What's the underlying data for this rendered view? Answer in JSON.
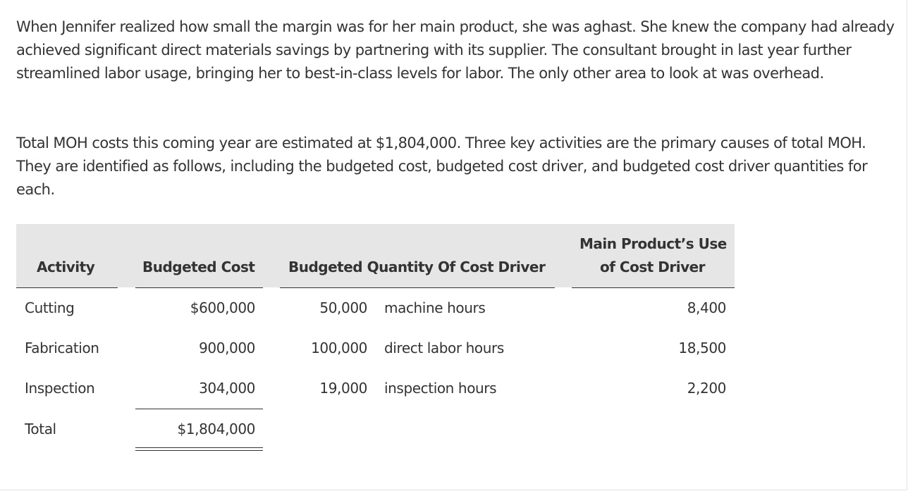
{
  "paragraphs": [
    "When Jennifer realized how small the margin was for her main product, she was aghast. She knew the company had already achieved significant direct materials savings by partnering with its supplier. The consultant brought in last year further streamlined labor usage, bringing her to best-in-class levels for labor. The only other area to look at was overhead.",
    "Total MOH costs this coming year are estimated at $1,804,000. Three key activities are the primary causes of total MOH. They are identified as follows, including the budgeted cost, budgeted cost driver, and budgeted cost driver quantities for each."
  ],
  "table": {
    "headers": {
      "activity": "Activity",
      "budgeted_cost": "Budgeted Cost",
      "budgeted_quantity": "Budgeted Quantity Of Cost Driver",
      "main_use_line1": "Main Product’s Use",
      "main_use_line2": "of Cost Driver"
    },
    "rows": [
      {
        "activity": "Cutting",
        "cost": "$600,000",
        "quantity": "50,000",
        "driver": "machine hours",
        "main_use": "8,400"
      },
      {
        "activity": "Fabrication",
        "cost": "900,000",
        "quantity": "100,000",
        "driver": "direct labor hours",
        "main_use": "18,500"
      },
      {
        "activity": "Inspection",
        "cost": "304,000",
        "quantity": "19,000",
        "driver": "inspection hours",
        "main_use": "2,200"
      }
    ],
    "total": {
      "label": "Total",
      "cost": "$1,804,000"
    }
  }
}
